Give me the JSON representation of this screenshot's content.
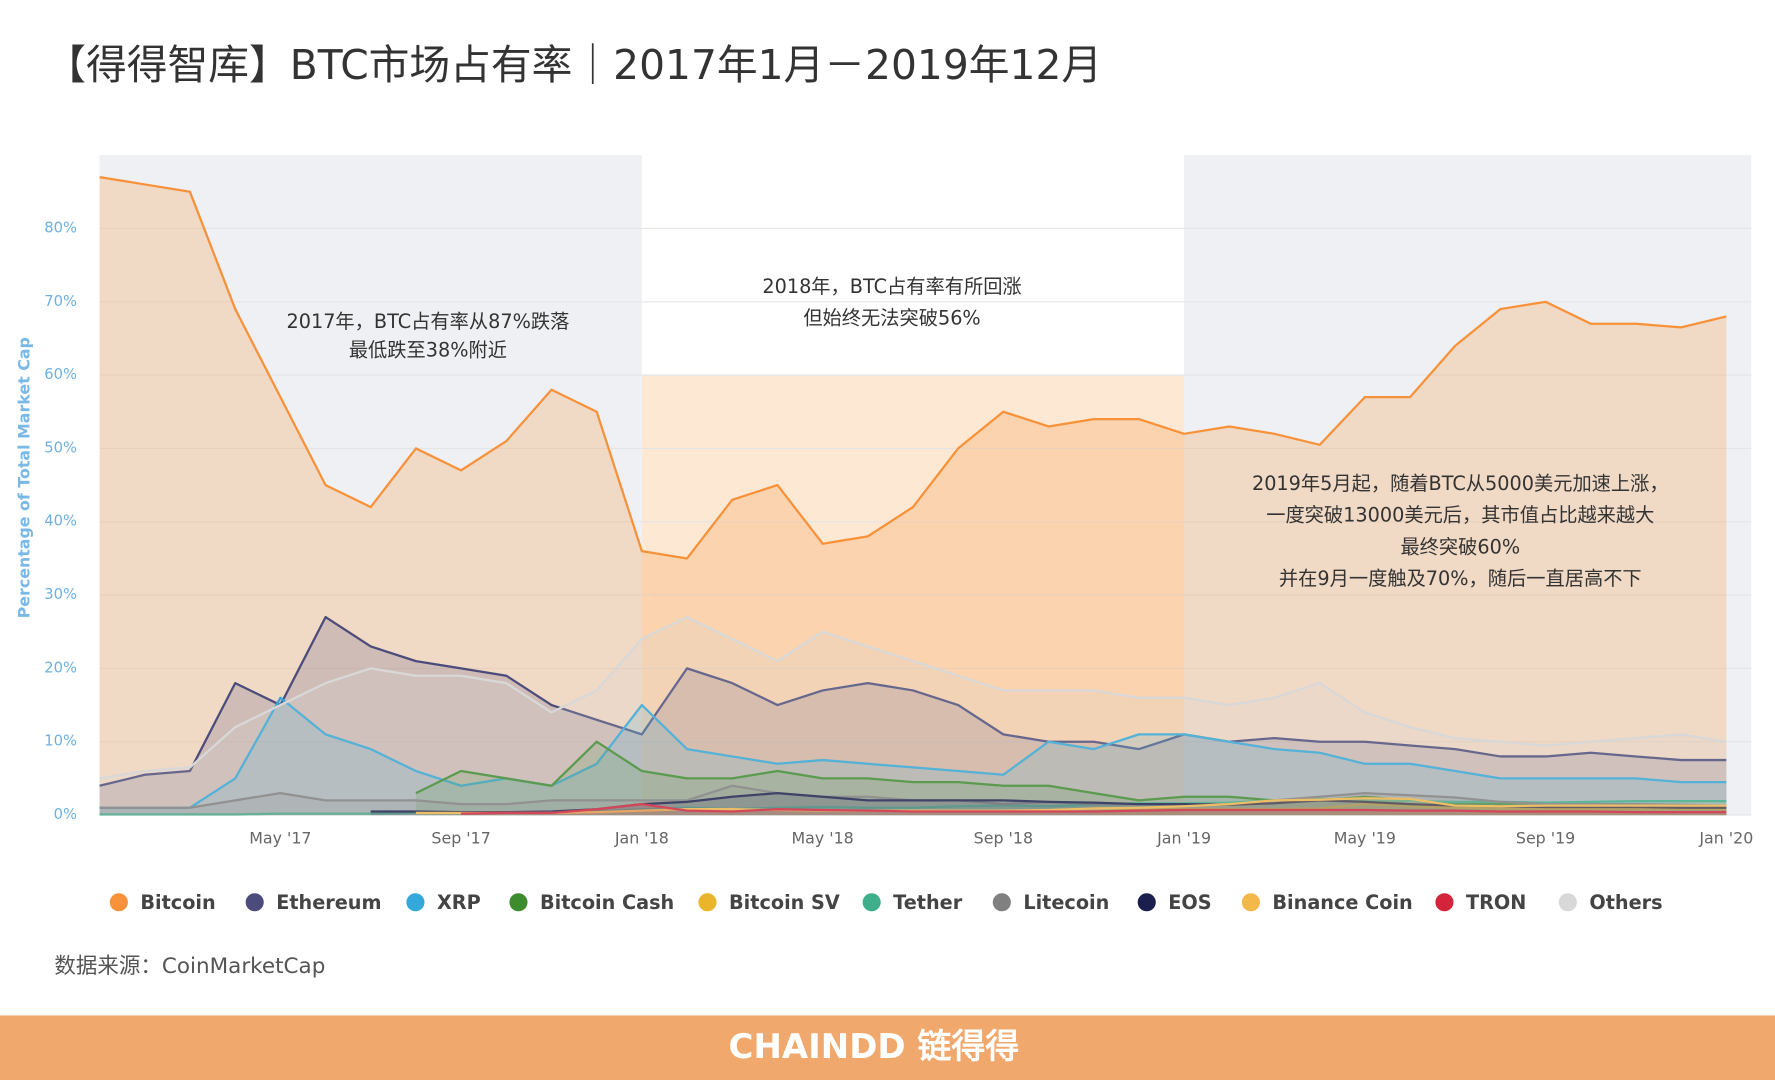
{
  "chart_data": {
    "type": "area",
    "title": "【得得智库】BTC市场占有率｜2017年1月－2019年12月",
    "y_label": "Percentage of Total Market Cap",
    "source": "数据来源：CoinMarketCap",
    "brand": "CHAINDD 链得得",
    "annotations": [
      [
        "2017年，BTC占有率从87%跌落",
        "最低跌至38%附近"
      ],
      [
        "2018年，BTC占有率有所回涨",
        "但始终无法突破56%"
      ],
      [
        "2019年5月起，随着BTC从5000美元加速上涨，",
        "一度突破13000美元后，其市值占比越来越大",
        "最终突破60%",
        "并在9月一度触及70%，随后一直居高不下"
      ]
    ],
    "categories": [
      null,
      null,
      null,
      null,
      "May '17",
      null,
      null,
      null,
      "Sep '17",
      null,
      null,
      null,
      "Jan '18",
      null,
      null,
      null,
      "May '18",
      null,
      null,
      null,
      "Sep '18",
      null,
      null,
      null,
      "Jan '19",
      null,
      null,
      null,
      "May '19",
      null,
      null,
      null,
      "Sep '19",
      null,
      null,
      null,
      "Jan '20"
    ],
    "ylim": [
      0,
      90
    ],
    "yticks": [
      {
        "value": 0,
        "label": "0%"
      },
      {
        "value": 10,
        "label": "10%"
      },
      {
        "value": 20,
        "label": "20%"
      },
      {
        "value": 30,
        "label": "30%"
      },
      {
        "value": 40,
        "label": "40%"
      },
      {
        "value": 50,
        "label": "50%"
      },
      {
        "value": 60,
        "label": "60%"
      },
      {
        "value": 70,
        "label": "70%"
      },
      {
        "value": 80,
        "label": "80%"
      }
    ],
    "grid": true,
    "series": [
      {
        "name": "Bitcoin",
        "color": "#f7923a",
        "values": [
          87,
          86,
          85,
          69,
          57,
          45,
          42,
          50,
          47,
          51,
          58,
          55,
          36,
          35,
          43,
          45,
          37,
          38,
          42,
          50,
          55,
          53,
          54,
          54,
          52,
          53,
          52,
          50.5,
          57,
          57,
          64,
          69,
          70,
          67,
          67,
          66.5,
          68
        ]
      },
      {
        "name": "Ethereum",
        "color": "#4c4c7c",
        "values": [
          4,
          5.5,
          6,
          18,
          15,
          27,
          23,
          21,
          20,
          19,
          15,
          13,
          11,
          20,
          18,
          15,
          17,
          18,
          17,
          15,
          11,
          10,
          10,
          9,
          11,
          10,
          10.5,
          10,
          10,
          9.5,
          9,
          8,
          8,
          8.5,
          8,
          7.5,
          7.5
        ]
      },
      {
        "name": "XRP",
        "color": "#34a8d8",
        "values": [
          1,
          1,
          1,
          5,
          16,
          11,
          9,
          6,
          4,
          5,
          4,
          7,
          15,
          9,
          8,
          7,
          7.5,
          7,
          6.5,
          6,
          5.5,
          10,
          9,
          11,
          11,
          10,
          9,
          8.5,
          7,
          7,
          6,
          5,
          5,
          5,
          5,
          4.5,
          4.5
        ]
      },
      {
        "name": "Bitcoin Cash",
        "color": "#3e8c2e",
        "values": [
          null,
          null,
          null,
          null,
          null,
          null,
          null,
          3,
          6,
          5,
          4,
          10,
          6,
          5,
          5,
          6,
          5,
          5,
          4.5,
          4.5,
          4,
          4,
          3,
          2,
          2.5,
          2.5,
          2,
          2,
          2.5,
          2,
          1.5,
          1.5,
          1.5,
          1.3,
          1.3,
          1.3,
          1.3
        ]
      },
      {
        "name": "Bitcoin SV",
        "color": "#eab52a",
        "values": [
          null,
          null,
          null,
          null,
          null,
          null,
          null,
          null,
          null,
          null,
          null,
          null,
          null,
          null,
          null,
          null,
          null,
          null,
          null,
          null,
          null,
          null,
          1,
          0.8,
          0.8,
          0.8,
          0.8,
          0.9,
          1.5,
          1.2,
          1,
          0.9,
          0.8,
          0.8,
          0.8,
          0.8,
          0.8
        ]
      },
      {
        "name": "Tether",
        "color": "#3fae8a",
        "values": [
          0.1,
          0.1,
          0.1,
          0.1,
          0.2,
          0.2,
          0.2,
          0.3,
          0.4,
          0.4,
          0.4,
          0.5,
          0.8,
          1,
          0.8,
          1,
          1.1,
          1,
          1,
          1.2,
          1.3,
          1.2,
          1.4,
          1.6,
          1.6,
          1.7,
          2,
          2.2,
          2,
          1.9,
          1.8,
          1.8,
          1.7,
          1.8,
          1.9,
          1.9,
          1.9
        ]
      },
      {
        "name": "Litecoin",
        "color": "#808080",
        "values": [
          1,
          1,
          1,
          2,
          3,
          2,
          2,
          2,
          1.5,
          1.5,
          2,
          2,
          2,
          2,
          4,
          3,
          2.5,
          2.5,
          2,
          2,
          1.5,
          1.8,
          1.5,
          1.5,
          1.5,
          1.5,
          2,
          2.5,
          3,
          2.7,
          2.4,
          1.8,
          1.5,
          1.5,
          1.5,
          1.4,
          1.3
        ]
      },
      {
        "name": "EOS",
        "color": "#1a1f4d",
        "values": [
          null,
          null,
          null,
          null,
          null,
          null,
          0.5,
          0.5,
          0.4,
          0.4,
          0.5,
          0.8,
          1.5,
          1.8,
          2.5,
          3,
          2.5,
          2,
          2,
          2,
          2,
          1.8,
          1.7,
          1.5,
          1.5,
          1.4,
          1.6,
          2,
          1.8,
          1.5,
          1.3,
          1.2,
          1.1,
          1.1,
          1.1,
          1,
          1
        ]
      },
      {
        "name": "Binance Coin",
        "color": "#f3b84a",
        "values": [
          null,
          null,
          null,
          null,
          null,
          null,
          null,
          0.3,
          0.3,
          0.3,
          0.3,
          0.4,
          0.6,
          0.8,
          0.8,
          0.7,
          0.6,
          0.6,
          0.6,
          0.6,
          0.6,
          0.7,
          0.9,
          1,
          1.2,
          1.5,
          2,
          2.1,
          2.3,
          2.2,
          1.3,
          1.2,
          1.3,
          1.3,
          1.3,
          1.3,
          1.3
        ]
      },
      {
        "name": "TRON",
        "color": "#d4243b",
        "values": [
          null,
          null,
          null,
          null,
          null,
          null,
          null,
          null,
          0.2,
          0.3,
          0.3,
          0.8,
          1.5,
          0.6,
          0.5,
          0.8,
          0.7,
          0.6,
          0.5,
          0.5,
          0.5,
          0.5,
          0.5,
          0.6,
          0.7,
          0.7,
          0.7,
          0.7,
          0.7,
          0.6,
          0.6,
          0.5,
          0.5,
          0.5,
          0.4,
          0.4,
          0.4
        ]
      },
      {
        "name": "Others",
        "color": "#d8d8d8",
        "values": [
          5,
          6,
          6.5,
          12,
          15,
          18,
          20,
          19,
          19,
          18,
          14,
          17,
          24,
          27,
          24,
          21,
          25,
          23,
          21,
          19,
          17,
          17,
          17,
          16,
          16,
          15,
          16,
          18,
          14,
          12,
          10.5,
          10,
          9.5,
          10,
          10.5,
          11,
          10
        ]
      }
    ]
  }
}
